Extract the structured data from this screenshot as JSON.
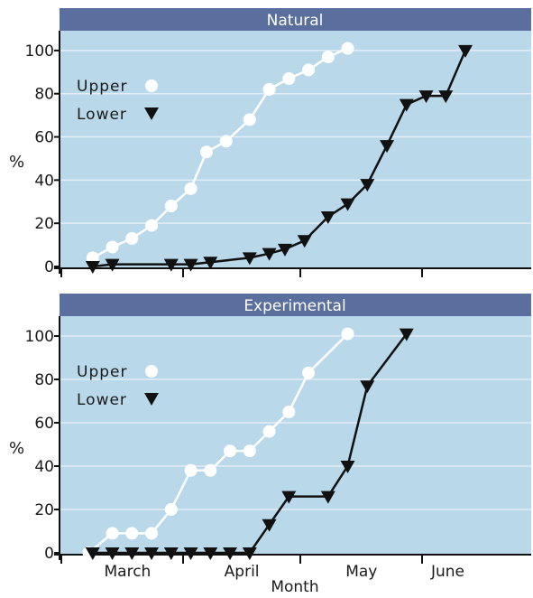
{
  "colors": {
    "plot_bg": "#b9d8ea",
    "header_bg": "#5b6f9e",
    "grid": "#e3eef6",
    "upper_series": "#ffffff",
    "lower_series": "#111111",
    "axis": "#111111"
  },
  "chart_data": [
    {
      "type": "line",
      "title": "Natural",
      "ylabel": "%",
      "xlabel": "",
      "ylim": [
        0,
        110
      ],
      "yticks": [
        0,
        20,
        40,
        60,
        80,
        100
      ],
      "x_unit": "day of year",
      "xlim": [
        61,
        166
      ],
      "x_ticks_major": [
        61,
        92,
        122,
        153
      ],
      "x_category_labels": [
        "March",
        "April",
        "May",
        "June"
      ],
      "grid": true,
      "legend": {
        "placement": "top-left",
        "entries": [
          "Upper",
          "Lower"
        ]
      },
      "series": [
        {
          "name": "Upper",
          "marker": "circle",
          "points": [
            {
              "x": 69,
              "y": 4
            },
            {
              "x": 74,
              "y": 9
            },
            {
              "x": 79,
              "y": 13
            },
            {
              "x": 84,
              "y": 19
            },
            {
              "x": 89,
              "y": 28
            },
            {
              "x": 94,
              "y": 36
            },
            {
              "x": 98,
              "y": 53
            },
            {
              "x": 103,
              "y": 58
            },
            {
              "x": 109,
              "y": 68
            },
            {
              "x": 114,
              "y": 82
            },
            {
              "x": 119,
              "y": 87
            },
            {
              "x": 124,
              "y": 91
            },
            {
              "x": 129,
              "y": 97
            },
            {
              "x": 134,
              "y": 101
            }
          ]
        },
        {
          "name": "Lower",
          "marker": "triangle-down",
          "points": [
            {
              "x": 69,
              "y": 0
            },
            {
              "x": 74,
              "y": 1
            },
            {
              "x": 89,
              "y": 1
            },
            {
              "x": 94,
              "y": 1
            },
            {
              "x": 99,
              "y": 2
            },
            {
              "x": 109,
              "y": 4
            },
            {
              "x": 114,
              "y": 6
            },
            {
              "x": 118,
              "y": 8
            },
            {
              "x": 123,
              "y": 12
            },
            {
              "x": 129,
              "y": 23
            },
            {
              "x": 134,
              "y": 29
            },
            {
              "x": 139,
              "y": 38
            },
            {
              "x": 144,
              "y": 56
            },
            {
              "x": 149,
              "y": 75
            },
            {
              "x": 154,
              "y": 79
            },
            {
              "x": 159,
              "y": 79
            },
            {
              "x": 164,
              "y": 100
            }
          ]
        }
      ]
    },
    {
      "type": "line",
      "title": "Experimental",
      "ylabel": "%",
      "xlabel": "Month",
      "ylim": [
        0,
        110
      ],
      "yticks": [
        0,
        20,
        40,
        60,
        80,
        100
      ],
      "x_unit": "day of year",
      "xlim": [
        61,
        166
      ],
      "x_ticks_major": [
        61,
        92,
        122,
        153
      ],
      "x_category_labels": [
        "March",
        "April",
        "May",
        "June"
      ],
      "grid": true,
      "legend": {
        "placement": "top-left",
        "entries": [
          "Upper",
          "Lower"
        ]
      },
      "series": [
        {
          "name": "Upper",
          "marker": "circle",
          "points": [
            {
              "x": 68,
              "y": 0
            },
            {
              "x": 74,
              "y": 9
            },
            {
              "x": 79,
              "y": 9
            },
            {
              "x": 84,
              "y": 9
            },
            {
              "x": 89,
              "y": 20
            },
            {
              "x": 94,
              "y": 38
            },
            {
              "x": 99,
              "y": 38
            },
            {
              "x": 104,
              "y": 47
            },
            {
              "x": 109,
              "y": 47
            },
            {
              "x": 114,
              "y": 56
            },
            {
              "x": 119,
              "y": 65
            },
            {
              "x": 124,
              "y": 83
            },
            {
              "x": 134,
              "y": 101
            }
          ]
        },
        {
          "name": "Lower",
          "marker": "triangle-down",
          "points": [
            {
              "x": 69,
              "y": 0
            },
            {
              "x": 74,
              "y": 0
            },
            {
              "x": 79,
              "y": 0
            },
            {
              "x": 84,
              "y": 0
            },
            {
              "x": 89,
              "y": 0
            },
            {
              "x": 94,
              "y": 0
            },
            {
              "x": 99,
              "y": 0
            },
            {
              "x": 104,
              "y": 0
            },
            {
              "x": 109,
              "y": 0
            },
            {
              "x": 114,
              "y": 13
            },
            {
              "x": 119,
              "y": 26
            },
            {
              "x": 129,
              "y": 26
            },
            {
              "x": 134,
              "y": 40
            },
            {
              "x": 139,
              "y": 77
            },
            {
              "x": 149,
              "y": 101
            }
          ]
        }
      ]
    }
  ]
}
